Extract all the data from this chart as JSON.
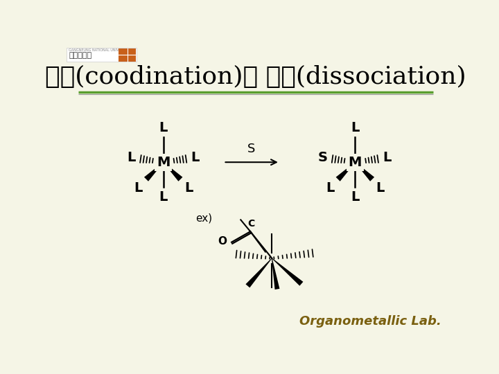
{
  "bg_color": "#f5f5e6",
  "title": "배위(coodination)와 해리(dissociation)",
  "title_fontsize": 26,
  "title_color": "#000000",
  "separator_color_green": "#5a9e2f",
  "separator_color_gray": "#999999",
  "footer_text": "Organometallic Lab.",
  "footer_color": "#7a6010",
  "footer_fontsize": 13,
  "arrow_label": "S",
  "ex_label": "ex)"
}
